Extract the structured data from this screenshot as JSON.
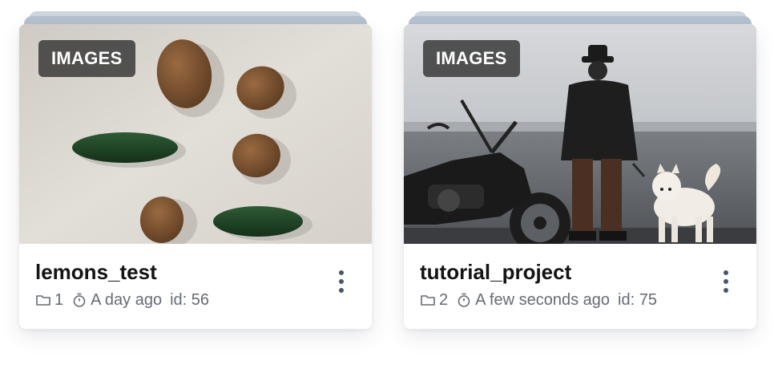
{
  "projects": [
    {
      "type_badge": "IMAGES",
      "name": "lemons_test",
      "folder_count": "1",
      "time": "A day ago",
      "id_text": "id: 56",
      "thumbnail": "kiwis-and-cucumbers-photo"
    },
    {
      "type_badge": "IMAGES",
      "name": "tutorial_project",
      "folder_count": "2",
      "time": "A few seconds ago",
      "id_text": "id: 75",
      "thumbnail": "man-with-dog-and-motorcycle-photo"
    }
  ],
  "icons": {
    "folder": "folder-icon",
    "timer": "timer-icon",
    "menu": "more-vertical-icon"
  },
  "colors": {
    "badge_bg": "#3a3a3a",
    "title": "#141414",
    "meta": "#666b73",
    "stack": "#b5c1ce"
  }
}
